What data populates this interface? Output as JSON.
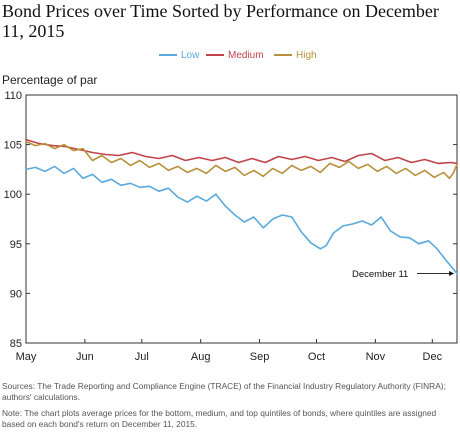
{
  "title": "Bond Prices over Time Sorted by Performance on December 11, 2015",
  "source_text": "Sources: The Trade Reporting and Compliance Engine (TRACE) of the Financial Industry Regulatory Authority (FINRA); authors' calculations.",
  "note_text": "Note: The chart plots average prices for the bottom, medium, and top quintiles of bonds, where quintiles are assigned based on each bond's return on December 11, 2015.",
  "chart_data": {
    "type": "line",
    "title": "Bond Prices over Time Sorted by Performance on December 11, 2015",
    "ylabel": "Percentage of par",
    "xlabel": "",
    "ylim": [
      85,
      110
    ],
    "yticks": [
      85,
      90,
      95,
      100,
      105,
      110
    ],
    "xlim": [
      "2015-05-01",
      "2015-12-14"
    ],
    "xtick_labels": [
      "May",
      "Jun",
      "Jul",
      "Aug",
      "Sep",
      "Oct",
      "Nov",
      "Dec"
    ],
    "xtick_dates": [
      "2015-05-01",
      "2015-06-01",
      "2015-07-01",
      "2015-08-01",
      "2015-09-01",
      "2015-10-01",
      "2015-11-01",
      "2015-12-01"
    ],
    "grid": false,
    "legend_position": "top",
    "series": [
      {
        "name": "Low",
        "color": "#5aa9dc",
        "points": [
          [
            "2015-05-01",
            102.5
          ],
          [
            "2015-05-06",
            102.7
          ],
          [
            "2015-05-11",
            102.3
          ],
          [
            "2015-05-16",
            102.8
          ],
          [
            "2015-05-21",
            102.1
          ],
          [
            "2015-05-26",
            102.6
          ],
          [
            "2015-05-31",
            101.6
          ],
          [
            "2015-06-05",
            102.0
          ],
          [
            "2015-06-10",
            101.2
          ],
          [
            "2015-06-15",
            101.5
          ],
          [
            "2015-06-20",
            100.9
          ],
          [
            "2015-06-25",
            101.1
          ],
          [
            "2015-06-30",
            100.7
          ],
          [
            "2015-07-05",
            100.8
          ],
          [
            "2015-07-10",
            100.3
          ],
          [
            "2015-07-15",
            100.6
          ],
          [
            "2015-07-20",
            99.7
          ],
          [
            "2015-07-25",
            99.2
          ],
          [
            "2015-07-30",
            99.8
          ],
          [
            "2015-08-04",
            99.3
          ],
          [
            "2015-08-09",
            100.0
          ],
          [
            "2015-08-14",
            98.8
          ],
          [
            "2015-08-19",
            97.9
          ],
          [
            "2015-08-24",
            97.2
          ],
          [
            "2015-08-29",
            97.7
          ],
          [
            "2015-09-03",
            96.6
          ],
          [
            "2015-09-08",
            97.5
          ],
          [
            "2015-09-13",
            97.9
          ],
          [
            "2015-09-18",
            97.7
          ],
          [
            "2015-09-23",
            96.2
          ],
          [
            "2015-09-28",
            95.1
          ],
          [
            "2015-10-03",
            94.5
          ],
          [
            "2015-10-06",
            94.8
          ],
          [
            "2015-10-10",
            96.1
          ],
          [
            "2015-10-15",
            96.8
          ],
          [
            "2015-10-20",
            97.0
          ],
          [
            "2015-10-25",
            97.3
          ],
          [
            "2015-10-30",
            96.9
          ],
          [
            "2015-11-04",
            97.7
          ],
          [
            "2015-11-09",
            96.3
          ],
          [
            "2015-11-14",
            95.7
          ],
          [
            "2015-11-19",
            95.6
          ],
          [
            "2015-11-24",
            95.0
          ],
          [
            "2015-11-29",
            95.3
          ],
          [
            "2015-12-03",
            94.6
          ],
          [
            "2015-12-08",
            93.4
          ],
          [
            "2015-12-11",
            92.7
          ],
          [
            "2015-12-14",
            92.0
          ]
        ]
      },
      {
        "name": "Medium",
        "color": "#c0444a",
        "points": [
          [
            "2015-05-01",
            105.5
          ],
          [
            "2015-05-08",
            105.1
          ],
          [
            "2015-05-15",
            104.9
          ],
          [
            "2015-05-22",
            104.8
          ],
          [
            "2015-05-29",
            104.5
          ],
          [
            "2015-06-05",
            104.2
          ],
          [
            "2015-06-12",
            104.0
          ],
          [
            "2015-06-19",
            103.9
          ],
          [
            "2015-06-26",
            104.2
          ],
          [
            "2015-07-03",
            103.8
          ],
          [
            "2015-07-10",
            103.6
          ],
          [
            "2015-07-17",
            103.9
          ],
          [
            "2015-07-24",
            103.4
          ],
          [
            "2015-07-31",
            103.7
          ],
          [
            "2015-08-07",
            103.4
          ],
          [
            "2015-08-14",
            103.7
          ],
          [
            "2015-08-21",
            103.2
          ],
          [
            "2015-08-28",
            103.6
          ],
          [
            "2015-09-04",
            103.2
          ],
          [
            "2015-09-11",
            103.8
          ],
          [
            "2015-09-18",
            103.5
          ],
          [
            "2015-09-25",
            103.8
          ],
          [
            "2015-10-02",
            103.4
          ],
          [
            "2015-10-09",
            103.7
          ],
          [
            "2015-10-16",
            103.3
          ],
          [
            "2015-10-23",
            103.9
          ],
          [
            "2015-10-30",
            104.1
          ],
          [
            "2015-11-06",
            103.4
          ],
          [
            "2015-11-13",
            103.7
          ],
          [
            "2015-11-20",
            103.2
          ],
          [
            "2015-11-27",
            103.5
          ],
          [
            "2015-12-04",
            103.1
          ],
          [
            "2015-12-11",
            103.2
          ],
          [
            "2015-12-14",
            103.1
          ]
        ]
      },
      {
        "name": "High",
        "color": "#b8903a",
        "points": [
          [
            "2015-05-01",
            105.3
          ],
          [
            "2015-05-06",
            104.9
          ],
          [
            "2015-05-11",
            105.1
          ],
          [
            "2015-05-16",
            104.6
          ],
          [
            "2015-05-21",
            105.0
          ],
          [
            "2015-05-26",
            104.4
          ],
          [
            "2015-05-31",
            104.6
          ],
          [
            "2015-06-05",
            103.4
          ],
          [
            "2015-06-10",
            103.9
          ],
          [
            "2015-06-15",
            103.2
          ],
          [
            "2015-06-20",
            103.6
          ],
          [
            "2015-06-25",
            102.9
          ],
          [
            "2015-06-30",
            103.4
          ],
          [
            "2015-07-05",
            102.7
          ],
          [
            "2015-07-10",
            103.1
          ],
          [
            "2015-07-15",
            102.4
          ],
          [
            "2015-07-20",
            102.8
          ],
          [
            "2015-07-25",
            102.2
          ],
          [
            "2015-07-30",
            102.6
          ],
          [
            "2015-08-04",
            102.1
          ],
          [
            "2015-08-09",
            102.9
          ],
          [
            "2015-08-14",
            102.3
          ],
          [
            "2015-08-19",
            102.7
          ],
          [
            "2015-08-24",
            101.9
          ],
          [
            "2015-08-29",
            102.4
          ],
          [
            "2015-09-03",
            101.8
          ],
          [
            "2015-09-08",
            102.6
          ],
          [
            "2015-09-13",
            102.1
          ],
          [
            "2015-09-18",
            102.9
          ],
          [
            "2015-09-23",
            102.4
          ],
          [
            "2015-09-28",
            102.8
          ],
          [
            "2015-10-03",
            102.2
          ],
          [
            "2015-10-08",
            103.1
          ],
          [
            "2015-10-13",
            102.7
          ],
          [
            "2015-10-18",
            103.3
          ],
          [
            "2015-10-23",
            102.6
          ],
          [
            "2015-10-28",
            103.0
          ],
          [
            "2015-11-02",
            102.3
          ],
          [
            "2015-11-07",
            102.8
          ],
          [
            "2015-11-12",
            102.1
          ],
          [
            "2015-11-17",
            102.6
          ],
          [
            "2015-11-22",
            101.9
          ],
          [
            "2015-11-27",
            102.4
          ],
          [
            "2015-12-02",
            101.7
          ],
          [
            "2015-12-07",
            102.2
          ],
          [
            "2015-12-10",
            101.6
          ],
          [
            "2015-12-12",
            102.1
          ],
          [
            "2015-12-14",
            103.0
          ]
        ]
      }
    ],
    "annotations": [
      {
        "text": "December 11",
        "x": "2015-12-13",
        "y": 92.0,
        "arrow": true
      }
    ]
  }
}
